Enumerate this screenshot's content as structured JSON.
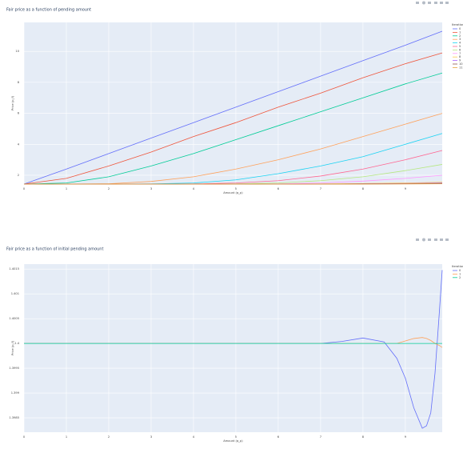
{
  "chart_data": [
    {
      "type": "line",
      "title": "Fair price as a function of pending amount",
      "x_label": "Amount (q_p)",
      "y_label": "Price (p_f)",
      "legend_title": "Iteration",
      "x": [
        0,
        1,
        2,
        3,
        4,
        5,
        6,
        7,
        8,
        9,
        9.87
      ],
      "xlim": [
        0,
        9.87
      ],
      "xticks": [
        0,
        1,
        2,
        3,
        4,
        5,
        6,
        7,
        8,
        9
      ],
      "ylim": [
        1.43,
        11.87
      ],
      "yticks": [
        2,
        4,
        6,
        8,
        10
      ],
      "grid": true,
      "series": [
        {
          "name": "0",
          "color": "#636efa",
          "values": [
            1.43,
            2.4,
            3.4,
            4.4,
            5.4,
            6.4,
            7.4,
            8.4,
            9.4,
            10.4,
            11.3
          ]
        },
        {
          "name": "1",
          "color": "#EF553B",
          "values": [
            1.43,
            1.8,
            2.6,
            3.5,
            4.5,
            5.4,
            6.4,
            7.3,
            8.3,
            9.2,
            9.9
          ]
        },
        {
          "name": "2",
          "color": "#00cc96",
          "values": [
            1.43,
            1.5,
            1.9,
            2.6,
            3.4,
            4.3,
            5.2,
            6.1,
            7.0,
            7.9,
            8.6
          ]
        },
        {
          "name": "3",
          "color": "#FFA15A",
          "values": [
            1.43,
            1.43,
            1.45,
            1.6,
            1.9,
            2.4,
            3.0,
            3.7,
            4.5,
            5.3,
            6.0
          ]
        },
        {
          "name": "4",
          "color": "#19d3f3",
          "values": [
            1.43,
            1.43,
            1.43,
            1.44,
            1.5,
            1.7,
            2.1,
            2.6,
            3.2,
            4.0,
            4.7
          ]
        },
        {
          "name": "5",
          "color": "#FF6692",
          "values": [
            1.43,
            1.43,
            1.43,
            1.43,
            1.44,
            1.5,
            1.65,
            1.95,
            2.4,
            3.0,
            3.6
          ]
        },
        {
          "name": "6",
          "color": "#B6E880",
          "values": [
            1.43,
            1.43,
            1.43,
            1.43,
            1.43,
            1.44,
            1.5,
            1.65,
            1.9,
            2.3,
            2.7
          ]
        },
        {
          "name": "7",
          "color": "#FF97FF",
          "values": [
            1.43,
            1.43,
            1.43,
            1.43,
            1.43,
            1.43,
            1.44,
            1.5,
            1.62,
            1.8,
            2.0
          ]
        },
        {
          "name": "8",
          "color": "#FECB52",
          "values": [
            1.43,
            1.43,
            1.43,
            1.43,
            1.43,
            1.43,
            1.43,
            1.44,
            1.47,
            1.5,
            1.55
          ]
        },
        {
          "name": "9",
          "color": "#ab63fa",
          "values": [
            1.43,
            1.43,
            1.43,
            1.43,
            1.43,
            1.43,
            1.43,
            1.43,
            1.45,
            1.47,
            1.5
          ]
        },
        {
          "name": "10",
          "color": "#8c564b",
          "values": [
            1.43,
            1.43,
            1.43,
            1.43,
            1.43,
            1.43,
            1.43,
            1.43,
            1.44,
            1.45,
            1.47
          ]
        },
        {
          "name": "11",
          "color": "#e8a33d",
          "values": [
            1.43,
            1.43,
            1.43,
            1.43,
            1.43,
            1.43,
            1.43,
            1.43,
            1.43,
            1.44,
            1.45
          ]
        }
      ]
    },
    {
      "type": "line",
      "title": "Fair price as a function of initial pending amount",
      "x_label": "Amount (q_p)",
      "y_label": "Price (p_f)",
      "legend_title": "Iteration",
      "x": [
        0,
        1,
        2,
        3,
        4,
        5,
        6,
        7,
        7.5,
        8,
        8.5,
        8.8,
        9,
        9.2,
        9.4,
        9.5,
        9.6,
        9.7,
        9.8,
        9.87
      ],
      "xlim": [
        0,
        9.87
      ],
      "xticks": [
        0,
        1,
        2,
        3,
        4,
        5,
        6,
        7,
        8,
        9
      ],
      "ylim": [
        1.39821,
        1.4016
      ],
      "yticks": [
        1.3985,
        1.399,
        1.3995,
        1.4,
        1.4005,
        1.401,
        1.4015
      ],
      "grid": true,
      "series": [
        {
          "name": "0",
          "color": "#636efa",
          "values": [
            1.4,
            1.4,
            1.4,
            1.4,
            1.4,
            1.4,
            1.4,
            1.4,
            1.40004,
            1.40011,
            1.40003,
            1.3997,
            1.3993,
            1.3987,
            1.39829,
            1.39834,
            1.3986,
            1.3994,
            1.4006,
            1.40148
          ]
        },
        {
          "name": "1",
          "color": "#FFA15A",
          "values": [
            1.4,
            1.4,
            1.4,
            1.4,
            1.4,
            1.4,
            1.4,
            1.4,
            1.4,
            1.4,
            1.4,
            1.4,
            1.40005,
            1.4001,
            1.40012,
            1.4001,
            1.40006,
            1.4,
            1.39996,
            1.39992
          ]
        },
        {
          "name": "2",
          "color": "#00cc96",
          "values": [
            1.4,
            1.4,
            1.4,
            1.4,
            1.4,
            1.4,
            1.4,
            1.4,
            1.4,
            1.4,
            1.4,
            1.4,
            1.4,
            1.4,
            1.4,
            1.4,
            1.4,
            1.4,
            1.4,
            1.4
          ]
        }
      ]
    }
  ]
}
